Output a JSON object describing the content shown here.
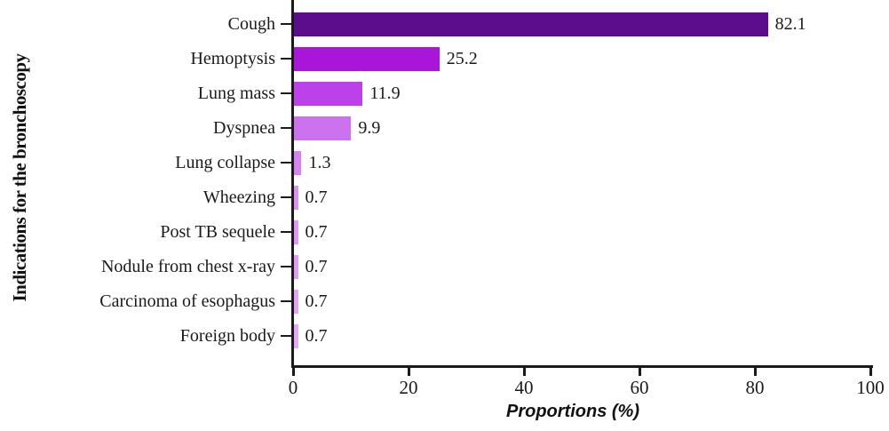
{
  "figure": {
    "x_axis_title": "Proportions (%)",
    "y_axis_title": "Indications for the bronchoscopy"
  },
  "chart_data": {
    "type": "bar",
    "orientation": "horizontal",
    "title": "",
    "xlabel": "Proportions (%)",
    "ylabel": "Indications for the bronchoscopy",
    "categories": [
      "Cough",
      "Hemoptysis",
      "Lung mass",
      "Dyspnea",
      "Lung collapse",
      "Wheezing",
      "Post TB sequele",
      "Nodule from chest x-ray",
      "Carcinoma of esophagus",
      "Foreign body"
    ],
    "values": [
      82.1,
      25.2,
      11.9,
      9.9,
      1.3,
      0.7,
      0.7,
      0.7,
      0.7,
      0.7
    ],
    "value_labels": [
      "82.1",
      "25.2",
      "11.9",
      "9.9",
      "1.3",
      "0.7",
      "0.7",
      "0.7",
      "0.7",
      "0.7"
    ],
    "bar_colors": [
      "#5c0d8d",
      "#aa15da",
      "#bc41ea",
      "#cd72ef",
      "#d683f2",
      "#dd91f3",
      "#e098f4",
      "#e29df5",
      "#e5a3f5",
      "#e7a9f6"
    ],
    "x_ticks": [
      0,
      20,
      40,
      60,
      80,
      100
    ],
    "xlim": [
      0,
      100
    ],
    "grid": false,
    "legend": null,
    "axis_color": "#1a1a1a"
  }
}
